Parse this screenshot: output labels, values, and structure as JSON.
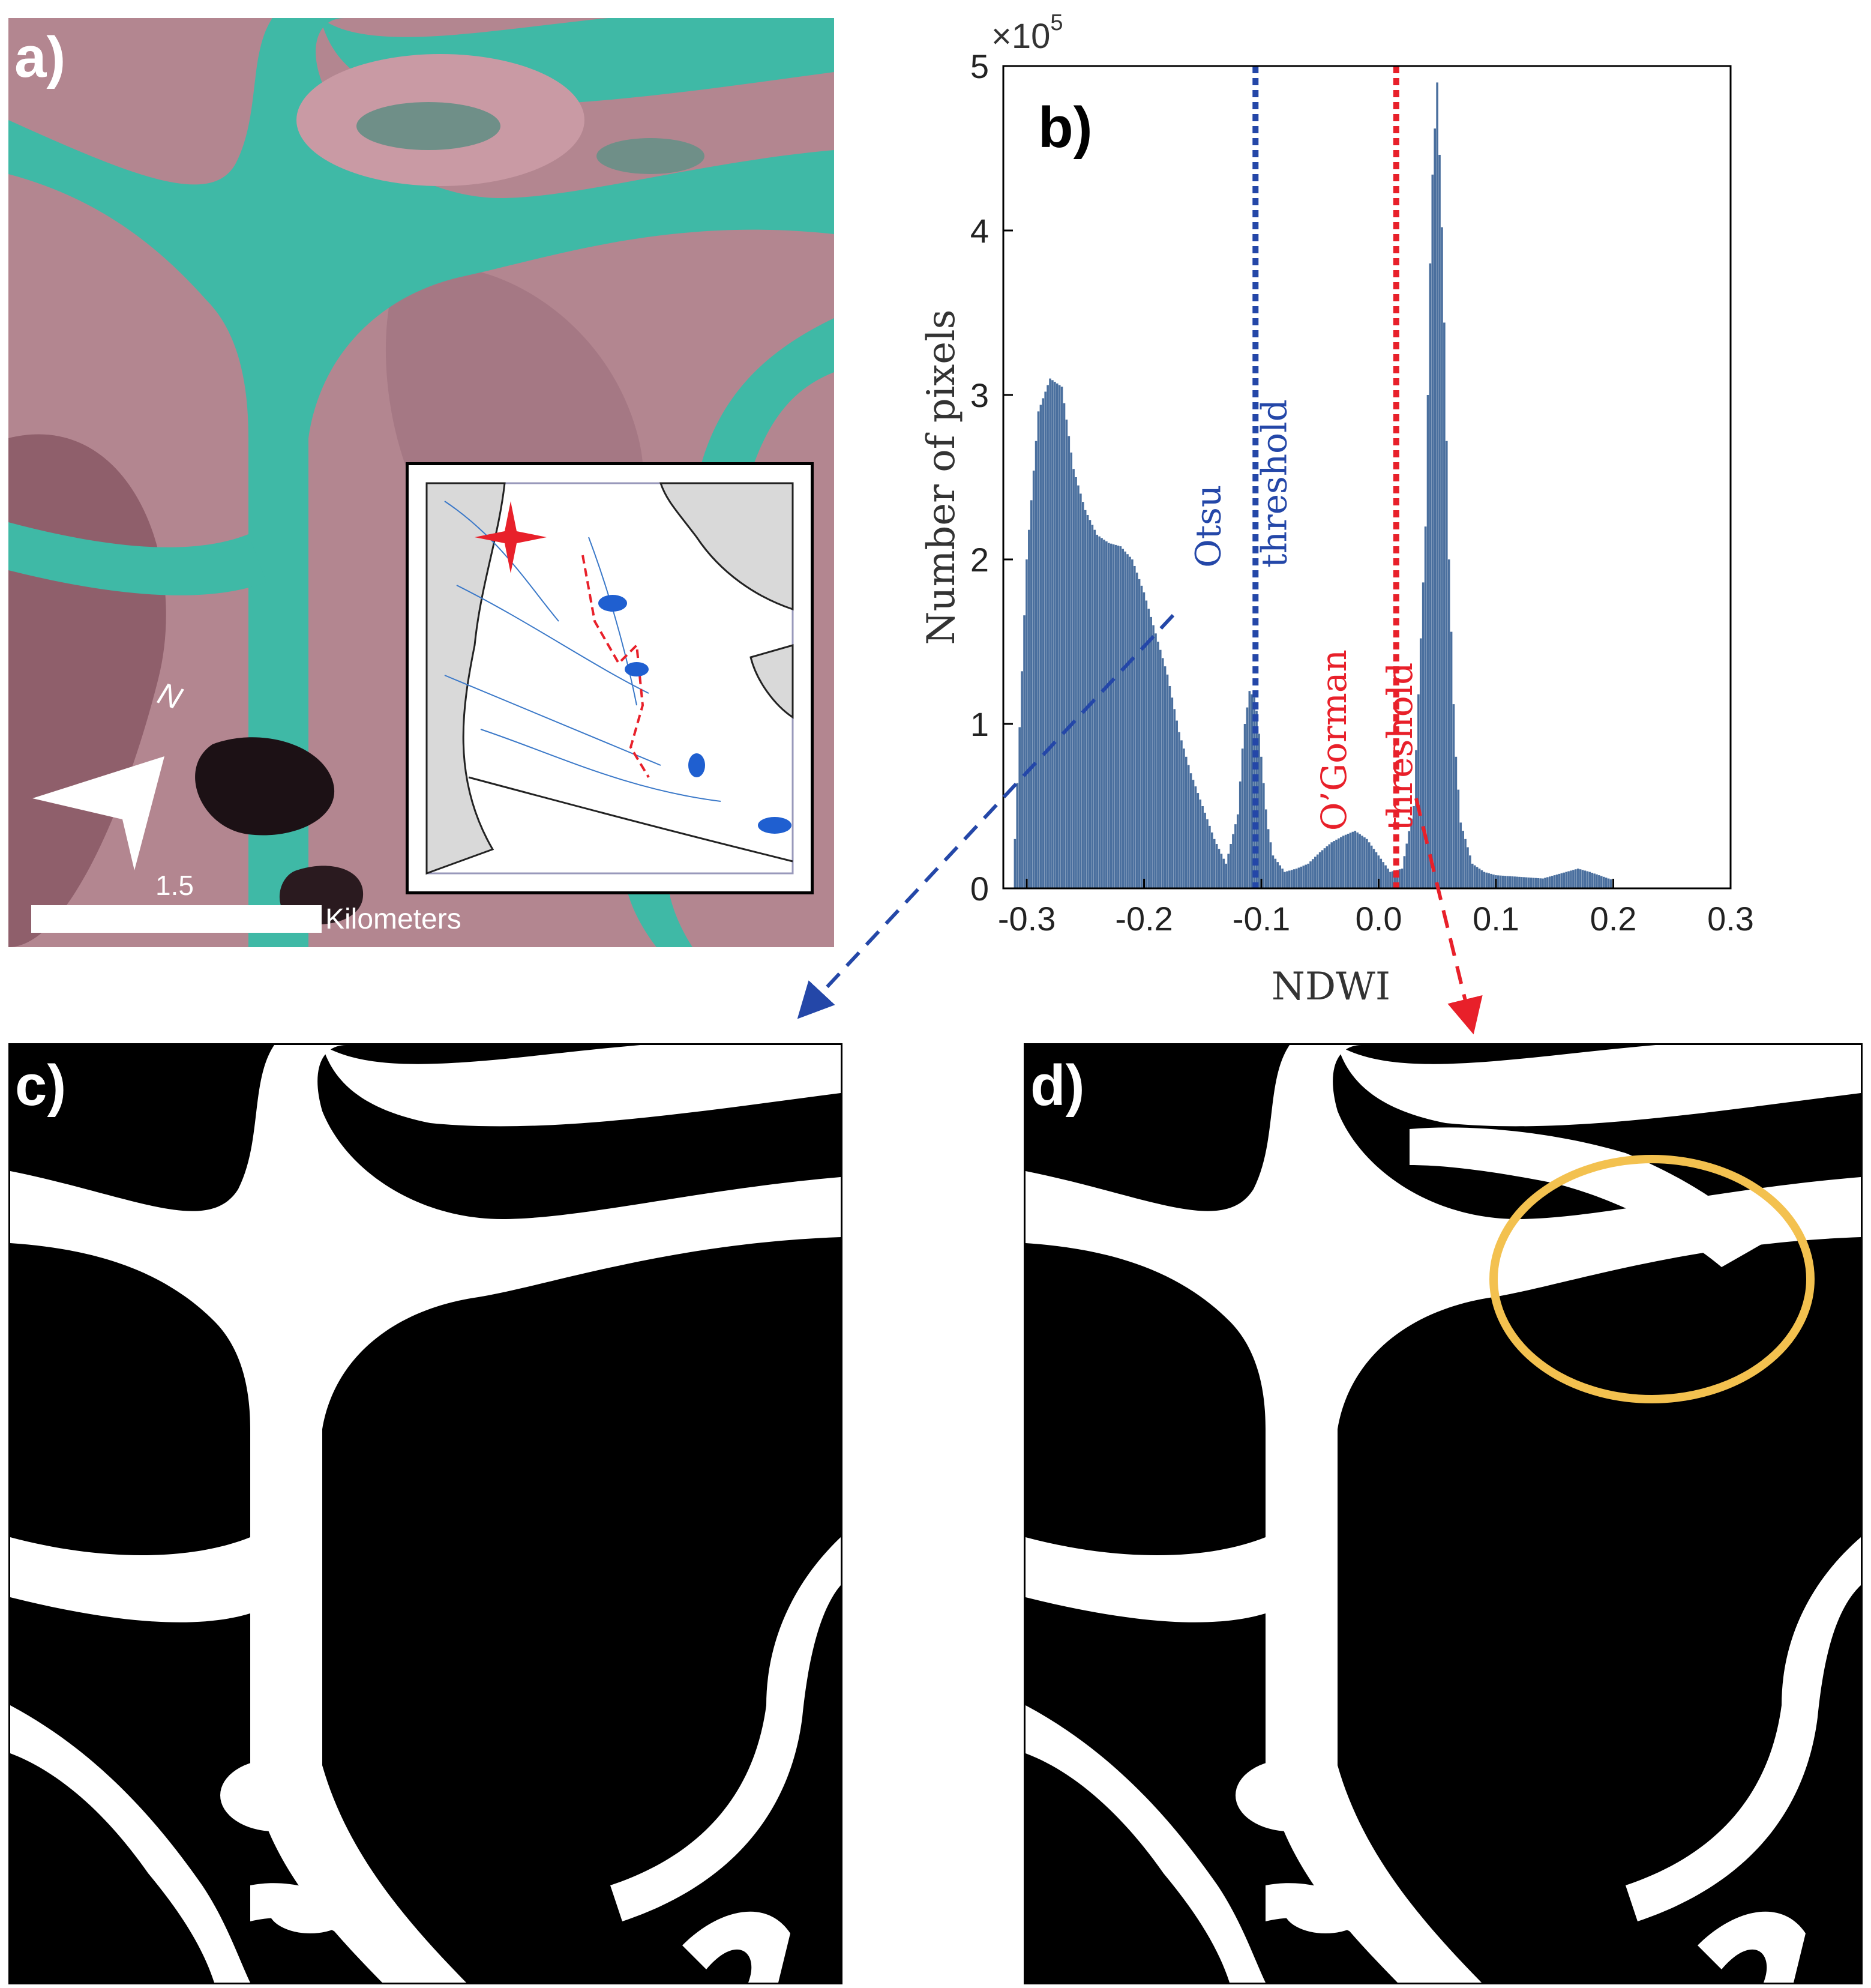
{
  "panels": {
    "a": {
      "label": "a)",
      "scalebar_value": "1.5",
      "scalebar_unit": "Kilometers",
      "north_label": "N"
    },
    "b": {
      "label": "b)"
    },
    "c": {
      "label": "c)"
    },
    "d": {
      "label": "d)"
    }
  },
  "colors": {
    "water": "#3fb9a6",
    "land": "#b98b97",
    "bars": "#4a6f9e",
    "otsu": "#2447a8",
    "ogorman": "#e8202a",
    "highlight_ellipse": "#f3c14f"
  },
  "chart_data": {
    "type": "bar",
    "title": "",
    "xlabel": "NDWI",
    "ylabel": "Number of pixels",
    "y_multiplier_label": "×10",
    "y_multiplier_exponent": "5",
    "xlim": [
      -0.32,
      0.3
    ],
    "ylim": [
      0,
      5
    ],
    "x_ticks": [
      "-0.3",
      "-0.2",
      "-0.1",
      "0.0",
      "0.1",
      "0.2",
      "0.3"
    ],
    "y_ticks": [
      "0",
      "1",
      "2",
      "3",
      "4",
      "5"
    ],
    "histogram": {
      "x": [
        -0.31,
        -0.3,
        -0.29,
        -0.28,
        -0.27,
        -0.26,
        -0.25,
        -0.24,
        -0.23,
        -0.22,
        -0.21,
        -0.2,
        -0.19,
        -0.18,
        -0.17,
        -0.16,
        -0.15,
        -0.14,
        -0.13,
        -0.12,
        -0.115,
        -0.11,
        -0.105,
        -0.1,
        -0.095,
        -0.09,
        -0.08,
        -0.07,
        -0.06,
        -0.05,
        -0.04,
        -0.03,
        -0.02,
        -0.01,
        0.0,
        0.01,
        0.02,
        0.03,
        0.04,
        0.045,
        0.05,
        0.055,
        0.06,
        0.065,
        0.07,
        0.08,
        0.09,
        0.1,
        0.12,
        0.14,
        0.16,
        0.17,
        0.18,
        0.2
      ],
      "y": [
        0.3,
        2.0,
        2.9,
        3.1,
        3.05,
        2.55,
        2.3,
        2.15,
        2.1,
        2.08,
        2.0,
        1.8,
        1.55,
        1.3,
        0.95,
        0.7,
        0.5,
        0.3,
        0.15,
        0.45,
        0.95,
        1.2,
        1.15,
        0.8,
        0.4,
        0.2,
        0.1,
        0.12,
        0.15,
        0.22,
        0.28,
        0.32,
        0.35,
        0.3,
        0.2,
        0.1,
        0.12,
        0.5,
        2.2,
        4.2,
        4.9,
        3.8,
        2.0,
        0.9,
        0.4,
        0.15,
        0.1,
        0.08,
        0.07,
        0.06,
        0.1,
        0.12,
        0.1,
        0.05
      ]
    },
    "thresholds": [
      {
        "name": "Otsu threshold",
        "x": -0.105,
        "line1": "Otsu",
        "line2": "threshold"
      },
      {
        "name": "O’Gorman threshold",
        "x": 0.015,
        "line1": "O’Gorman",
        "line2": "threshold"
      }
    ],
    "grid": false,
    "legend": "none"
  }
}
